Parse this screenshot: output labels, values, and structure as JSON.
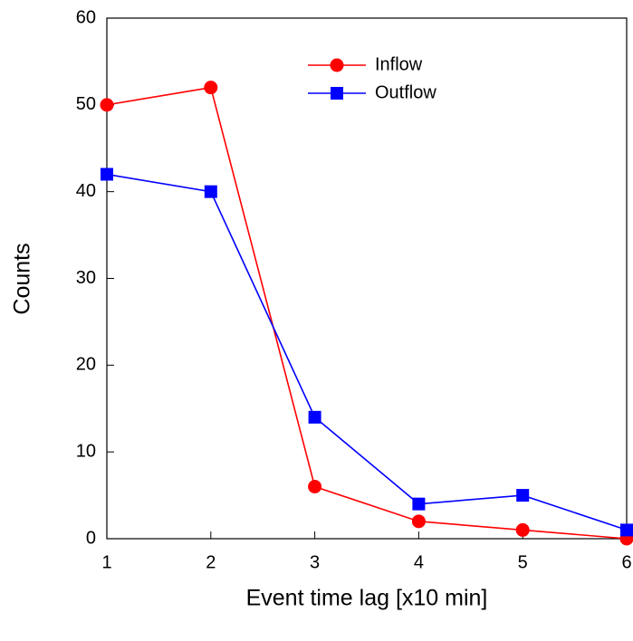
{
  "chart_data": {
    "type": "line",
    "x_label": "Event time lag [x10 min]",
    "y_label": "Counts",
    "x": [
      1,
      2,
      3,
      4,
      5,
      6
    ],
    "series": [
      {
        "name": "Inflow",
        "color": "#ff0000",
        "marker": "circle",
        "values": [
          50,
          52,
          6,
          2,
          1,
          0
        ]
      },
      {
        "name": "Outflow",
        "color": "#0000ff",
        "marker": "square",
        "values": [
          42,
          40,
          14,
          4,
          5,
          1
        ]
      }
    ],
    "xlim": [
      1,
      6
    ],
    "xticks": [
      1,
      2,
      3,
      4,
      5,
      6
    ],
    "ylim": [
      0,
      60
    ],
    "yticks": [
      0,
      10,
      20,
      30,
      40,
      50,
      60
    ],
    "legend": "top-center",
    "grid": false
  }
}
